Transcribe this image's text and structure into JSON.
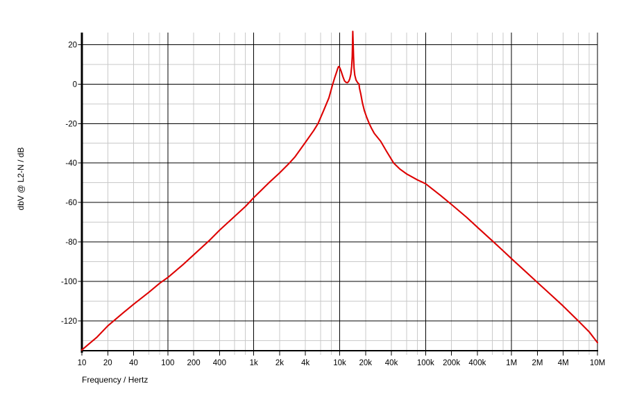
{
  "window": {
    "background": "#ffffff"
  },
  "chart_data": {
    "type": "line",
    "title": "",
    "legend": "none",
    "grid": {
      "major_color": "#000000",
      "minor_color": "#c9c9c9",
      "on": true
    },
    "x_axis": {
      "label": "Frequency / Hertz",
      "scale": "log",
      "range": [
        10,
        10000000
      ],
      "tick_labels": [
        {
          "value": 10,
          "label": "10"
        },
        {
          "value": 20,
          "label": "20"
        },
        {
          "value": 40,
          "label": "40"
        },
        {
          "value": 100,
          "label": "100"
        },
        {
          "value": 200,
          "label": "200"
        },
        {
          "value": 400,
          "label": "400"
        },
        {
          "value": 1000,
          "label": "1k"
        },
        {
          "value": 2000,
          "label": "2k"
        },
        {
          "value": 4000,
          "label": "4k"
        },
        {
          "value": 10000,
          "label": "10k"
        },
        {
          "value": 20000,
          "label": "20k"
        },
        {
          "value": 40000,
          "label": "40k"
        },
        {
          "value": 100000,
          "label": "100k"
        },
        {
          "value": 200000,
          "label": "200k"
        },
        {
          "value": 400000,
          "label": "400k"
        },
        {
          "value": 1000000,
          "label": "1M"
        },
        {
          "value": 2000000,
          "label": "2M"
        },
        {
          "value": 4000000,
          "label": "4M"
        },
        {
          "value": 10000000,
          "label": "10M"
        }
      ],
      "minor_gridline_multipliers": [
        2,
        4,
        6,
        8
      ],
      "unlabeled_minor_tick_multipliers": [
        6,
        8
      ]
    },
    "y_axis": {
      "label": "dbV @ L2-N / dB",
      "scale": "linear",
      "range": [
        -135,
        26.8
      ],
      "tick_labels": [
        {
          "value": 20,
          "label": "20"
        },
        {
          "value": 0,
          "label": "0"
        },
        {
          "value": -20,
          "label": "-20"
        },
        {
          "value": -40,
          "label": "-40"
        },
        {
          "value": -60,
          "label": "-60"
        },
        {
          "value": -80,
          "label": "-80"
        },
        {
          "value": -100,
          "label": "-100"
        },
        {
          "value": -120,
          "label": "-120"
        }
      ],
      "minor_gridlines": [
        10,
        -10,
        -30,
        -50,
        -70,
        -90,
        -110,
        -130
      ]
    },
    "series": [
      {
        "name": "dbV @ L2-N",
        "color": "#dd0000",
        "points": [
          [
            10,
            -134.7
          ],
          [
            15,
            -128.2
          ],
          [
            20,
            -122.5
          ],
          [
            30,
            -116
          ],
          [
            40,
            -111.5
          ],
          [
            60,
            -105.5
          ],
          [
            80,
            -101
          ],
          [
            100,
            -98
          ],
          [
            150,
            -91.5
          ],
          [
            200,
            -86.5
          ],
          [
            300,
            -79.5
          ],
          [
            400,
            -74
          ],
          [
            600,
            -67
          ],
          [
            800,
            -62
          ],
          [
            1000,
            -57.5
          ],
          [
            1500,
            -50
          ],
          [
            2000,
            -45
          ],
          [
            2600,
            -40
          ],
          [
            3000,
            -37
          ],
          [
            4000,
            -29.5
          ],
          [
            5000,
            -23.5
          ],
          [
            5600,
            -20
          ],
          [
            6500,
            -13.5
          ],
          [
            7500,
            -7
          ],
          [
            8300,
            0
          ],
          [
            8800,
            3.5
          ],
          [
            9200,
            6
          ],
          [
            9500,
            7.9
          ],
          [
            9700,
            8.9
          ],
          [
            10000,
            8.4
          ],
          [
            10400,
            6.5
          ],
          [
            10900,
            3.8
          ],
          [
            11400,
            1.6
          ],
          [
            11900,
            0.8
          ],
          [
            12300,
            0.7
          ],
          [
            12700,
            1.3
          ],
          [
            13100,
            2.6
          ],
          [
            13500,
            5
          ],
          [
            13800,
            9
          ],
          [
            14000,
            14
          ],
          [
            14100,
            20
          ],
          [
            14200,
            26.7
          ],
          [
            14350,
            21
          ],
          [
            14500,
            14
          ],
          [
            14700,
            8
          ],
          [
            15000,
            4.5
          ],
          [
            15500,
            2
          ],
          [
            16200,
            0.7
          ],
          [
            16800,
            0
          ],
          [
            17000,
            -2
          ],
          [
            17600,
            -5
          ],
          [
            18400,
            -9.5
          ],
          [
            19400,
            -13.5
          ],
          [
            20600,
            -16.8
          ],
          [
            22100,
            -20
          ],
          [
            23500,
            -22.5
          ],
          [
            25300,
            -25
          ],
          [
            30000,
            -29
          ],
          [
            35000,
            -34
          ],
          [
            42500,
            -40
          ],
          [
            50000,
            -43
          ],
          [
            60000,
            -45.5
          ],
          [
            80000,
            -48.5
          ],
          [
            100000,
            -50.5
          ],
          [
            150000,
            -56.5
          ],
          [
            200000,
            -61
          ],
          [
            300000,
            -67.5
          ],
          [
            400000,
            -72.5
          ],
          [
            600000,
            -79.5
          ],
          [
            800000,
            -84.5
          ],
          [
            1000000,
            -88.5
          ],
          [
            1500000,
            -95.5
          ],
          [
            2000000,
            -100.5
          ],
          [
            3000000,
            -107.5
          ],
          [
            4000000,
            -112.5
          ],
          [
            6000000,
            -120
          ],
          [
            8000000,
            -125.5
          ],
          [
            10000000,
            -131
          ]
        ]
      }
    ]
  }
}
